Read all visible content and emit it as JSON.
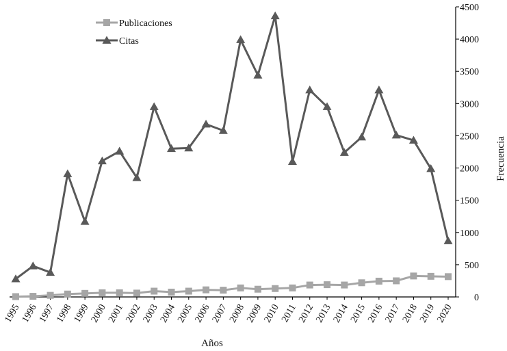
{
  "chart_data": {
    "type": "line",
    "xlabel": "Años",
    "ylabel": "Frecuencia",
    "ylim": [
      0,
      4500
    ],
    "yticks": [
      0,
      500,
      1000,
      1500,
      2000,
      2500,
      3000,
      3500,
      4000,
      4500
    ],
    "y_axis_side": "right",
    "legend_position": "top-left",
    "grid": false,
    "categories": [
      "1995",
      "1996",
      "1997",
      "1998",
      "1999",
      "2000",
      "2001",
      "2002",
      "2003",
      "2004",
      "2005",
      "2006",
      "2007",
      "2008",
      "2009",
      "2010",
      "2011",
      "2012",
      "2013",
      "2014",
      "2015",
      "2016",
      "2017",
      "2018",
      "2019",
      "2020"
    ],
    "series": [
      {
        "name": "Publicaciones",
        "marker": "square",
        "color": "#a6a6a6",
        "values": [
          5,
          10,
          25,
          45,
          55,
          65,
          65,
          60,
          90,
          75,
          90,
          110,
          105,
          140,
          120,
          130,
          140,
          185,
          190,
          185,
          220,
          245,
          250,
          325,
          320,
          315
        ]
      },
      {
        "name": "Citas",
        "marker": "triangle",
        "color": "#595959",
        "values": [
          280,
          480,
          380,
          1910,
          1170,
          2110,
          2260,
          1850,
          2950,
          2300,
          2310,
          2680,
          2580,
          3990,
          3440,
          4360,
          2100,
          3210,
          2950,
          2240,
          2480,
          3210,
          2510,
          2430,
          1990,
          870
        ]
      }
    ]
  }
}
